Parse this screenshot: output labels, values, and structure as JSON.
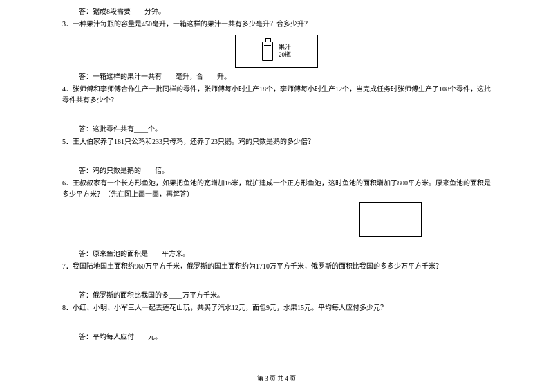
{
  "q2_answer": "答：锯成8段需要____分钟。",
  "q3": "3．一种果汁每瓶的容量是450毫升，一箱这样的果汁一共有多少毫升？合多少升？",
  "juice_label1": "果汁",
  "juice_label2": "20瓶",
  "q3_answer": "答：一箱这样的果汁一共有____毫升，合____升。",
  "q4": "4．张师傅和李师傅合作生产一批同样的零件，张师傅每小时生产18个，李师傅每小时生产12个，当完成任务时张师傅生产了108个零件，这批零件共有多少个？",
  "q4_answer": "答：这批零件共有____个。",
  "q5": "5．王大伯家养了181只公鸡和233只母鸡，还养了23只鹅。鸡的只数是鹅的多少倍？",
  "q5_answer": "答：鸡的只数是鹅的____倍。",
  "q6a": "6．王叔叔家有一个长方形鱼池，如果把鱼池的宽增加16米，就扩建成一个正方形鱼池，这时鱼池的面积增加了800平方米。原来鱼池的面积是多少平方米？（先在图上画一画，再解答）",
  "q6_answer": "答：原来鱼池的面积是____平方米。",
  "q7": "7．我国陆地国土面积约960万平方千米，俄罗斯的国土面积约为1710万平方千米，俄罗斯的面积比我国的多多少万平方千米？",
  "q7_answer": "答：俄罗斯的面积比我国的多____万平方千米。",
  "q8": "8．小红、小明、小军三人一起去莲花山玩，共买了汽水12元，面包9元，水果15元。平均每人应付多少元？",
  "q8_answer": "答：平均每人应付____元。",
  "footer": "第 3 页 共 4 页"
}
